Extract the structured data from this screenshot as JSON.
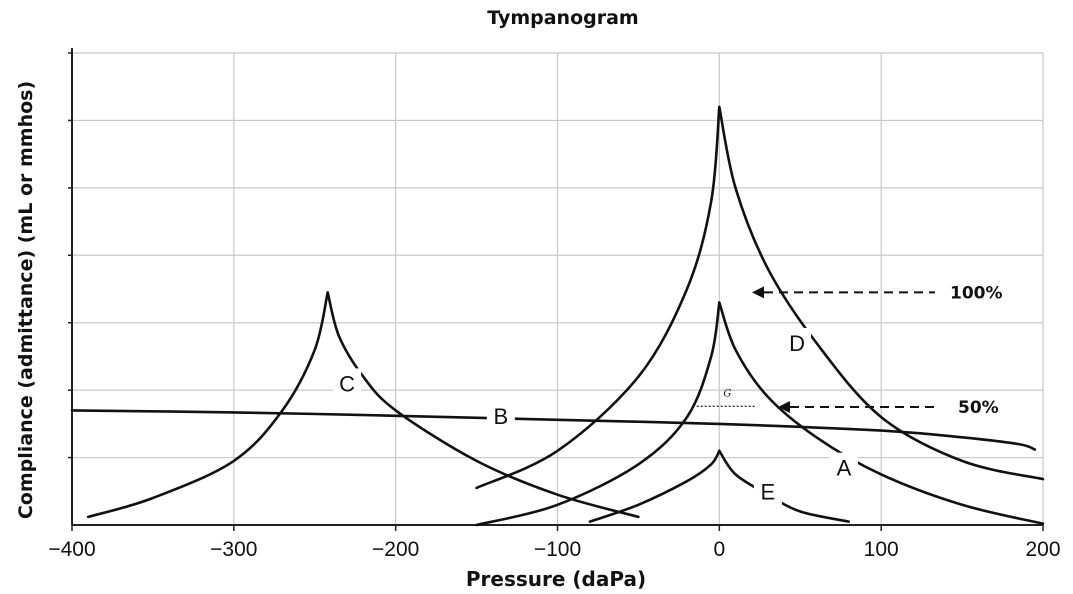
{
  "chart_data": {
    "type": "line",
    "title": "Tympanogram",
    "xlabel": "Pressure (daPa)",
    "ylabel": "Compliance (admittance) (mL or mmhos)",
    "xlim": [
      -400,
      200
    ],
    "xticks": [
      -400,
      -300,
      -200,
      -100,
      0,
      100,
      200
    ],
    "xtick_labels": [
      "−400",
      "−300",
      "−200",
      "−100",
      "0",
      "100",
      "200"
    ],
    "ylim": [
      0,
      7
    ],
    "grid": true,
    "series": [
      {
        "name": "A",
        "points": [
          [
            -150,
            0
          ],
          [
            -100,
            0.3
          ],
          [
            -50,
            0.9
          ],
          [
            -20,
            1.6
          ],
          [
            -5,
            2.5
          ],
          [
            0,
            3.3
          ],
          [
            10,
            2.6
          ],
          [
            30,
            1.9
          ],
          [
            60,
            1.3
          ],
          [
            100,
            0.75
          ],
          [
            150,
            0.3
          ],
          [
            200,
            0.02
          ]
        ]
      },
      {
        "name": "B",
        "points": [
          [
            -400,
            1.7
          ],
          [
            -300,
            1.67
          ],
          [
            -200,
            1.62
          ],
          [
            -100,
            1.56
          ],
          [
            0,
            1.5
          ],
          [
            100,
            1.4
          ],
          [
            150,
            1.3
          ],
          [
            185,
            1.2
          ],
          [
            195,
            1.12
          ]
        ]
      },
      {
        "name": "C",
        "points": [
          [
            -390,
            0.12
          ],
          [
            -350,
            0.4
          ],
          [
            -300,
            0.95
          ],
          [
            -270,
            1.7
          ],
          [
            -250,
            2.6
          ],
          [
            -242,
            3.45
          ],
          [
            -235,
            2.8
          ],
          [
            -220,
            2.2
          ],
          [
            -200,
            1.7
          ],
          [
            -150,
            0.95
          ],
          [
            -100,
            0.45
          ],
          [
            -50,
            0.12
          ]
        ]
      },
      {
        "name": "D",
        "points": [
          [
            -150,
            0.55
          ],
          [
            -100,
            1.1
          ],
          [
            -50,
            2.2
          ],
          [
            -20,
            3.5
          ],
          [
            -5,
            4.8
          ],
          [
            0,
            6.2
          ],
          [
            10,
            5.0
          ],
          [
            30,
            3.8
          ],
          [
            60,
            2.7
          ],
          [
            100,
            1.6
          ],
          [
            150,
            0.95
          ],
          [
            200,
            0.68
          ]
        ]
      },
      {
        "name": "E",
        "points": [
          [
            -80,
            0.05
          ],
          [
            -50,
            0.3
          ],
          [
            -20,
            0.65
          ],
          [
            -5,
            0.9
          ],
          [
            0,
            1.1
          ],
          [
            10,
            0.75
          ],
          [
            30,
            0.45
          ],
          [
            50,
            0.2
          ],
          [
            80,
            0.05
          ]
        ]
      }
    ],
    "curve_labels": [
      {
        "text": "A",
        "x": 77,
        "y": 0.85
      },
      {
        "text": "B",
        "x": -135,
        "y": 1.62
      },
      {
        "text": "C",
        "x": -230,
        "y": 2.1
      },
      {
        "text": "D",
        "x": 48,
        "y": 2.7
      },
      {
        "text": "E",
        "x": 30,
        "y": 0.5
      }
    ],
    "annotations": [
      {
        "text": "100%",
        "y": 3.45
      },
      {
        "text": "50%",
        "y": 1.75
      },
      {
        "text": "G",
        "x": 5,
        "y": 1.85
      }
    ]
  }
}
